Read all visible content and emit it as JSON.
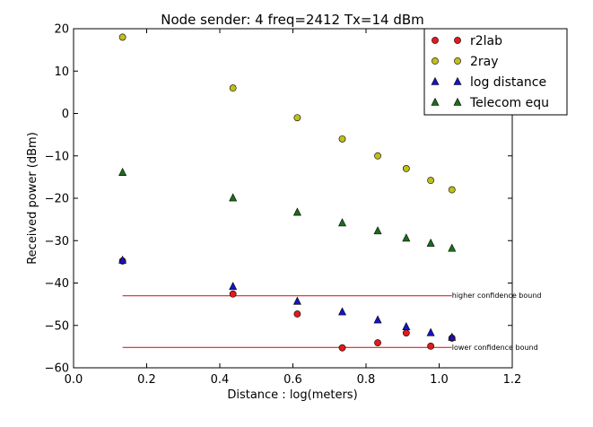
{
  "chart_data": {
    "type": "scatter",
    "title": "Node sender: 4 freq=2412 Tx=14 dBm",
    "xlabel": "Distance : log(meters)",
    "ylabel": "Received power (dBm)",
    "xlim": [
      0.0,
      1.2
    ],
    "ylim": [
      -60,
      20
    ],
    "xticks": [
      0.0,
      0.2,
      0.4,
      0.6,
      0.8,
      1.0,
      1.2
    ],
    "xtick_labels": [
      "0.0",
      "0.2",
      "0.4",
      "0.6",
      "0.8",
      "1.0",
      "1.2"
    ],
    "yticks": [
      -60,
      -50,
      -40,
      -30,
      -20,
      -10,
      0,
      10,
      20
    ],
    "ytick_labels": [
      "−60",
      "−50",
      "−40",
      "−30",
      "−20",
      "−10",
      "0",
      "10",
      "20"
    ],
    "grid": false,
    "legend_position": "top-right",
    "series": [
      {
        "name": "r2lab",
        "marker": "circle",
        "color": "#e31a1c",
        "x": [
          0.134,
          0.436,
          0.612,
          0.735,
          0.832,
          0.91,
          0.977,
          1.035
        ],
        "y": [
          -34.8,
          -42.6,
          -47.3,
          -55.3,
          -54.1,
          -51.8,
          -54.9,
          -53.0
        ]
      },
      {
        "name": "2ray",
        "marker": "circle",
        "color": "#bfbf1a",
        "x": [
          0.134,
          0.436,
          0.612,
          0.735,
          0.832,
          0.91,
          0.977,
          1.035
        ],
        "y": [
          18.0,
          6.0,
          -1.0,
          -6.0,
          -10.0,
          -13.0,
          -15.8,
          -18.0
        ]
      },
      {
        "name": "log distance",
        "marker": "triangle",
        "color": "#1414c8",
        "x": [
          0.134,
          0.436,
          0.612,
          0.735,
          0.832,
          0.91,
          0.977,
          1.035
        ],
        "y": [
          -34.6,
          -40.8,
          -44.3,
          -46.8,
          -48.7,
          -50.3,
          -51.7,
          -52.8
        ]
      },
      {
        "name": "Telecom equ",
        "marker": "triangle",
        "color": "#1a6e1a",
        "x": [
          0.134,
          0.436,
          0.612,
          0.735,
          0.832,
          0.91,
          0.977,
          1.035
        ],
        "y": [
          -13.9,
          -19.9,
          -23.3,
          -25.8,
          -27.7,
          -29.4,
          -30.6,
          -31.8
        ]
      }
    ],
    "reference_lines": [
      {
        "label": "higher confidence bound",
        "y": -43.0,
        "x_start": 0.134,
        "x_end": 1.035,
        "color": "#d62728"
      },
      {
        "label": "lower confidence bound",
        "y": -55.2,
        "x_start": 0.134,
        "x_end": 1.035,
        "color": "#d62728"
      }
    ]
  }
}
